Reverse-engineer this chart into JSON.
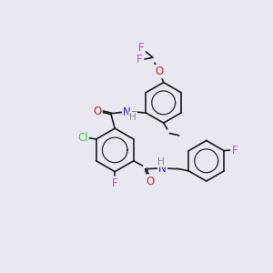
{
  "bg_color": "#e8e8f0",
  "bond_color": "#1a1a1a",
  "atom_colors": {
    "F": "#cc44cc",
    "Cl": "#44cc44",
    "O": "#cc2222",
    "N": "#2222cc",
    "H": "#888888",
    "C": "#1a1a1a"
  },
  "font_size": 8.5,
  "bond_width": 1.2
}
